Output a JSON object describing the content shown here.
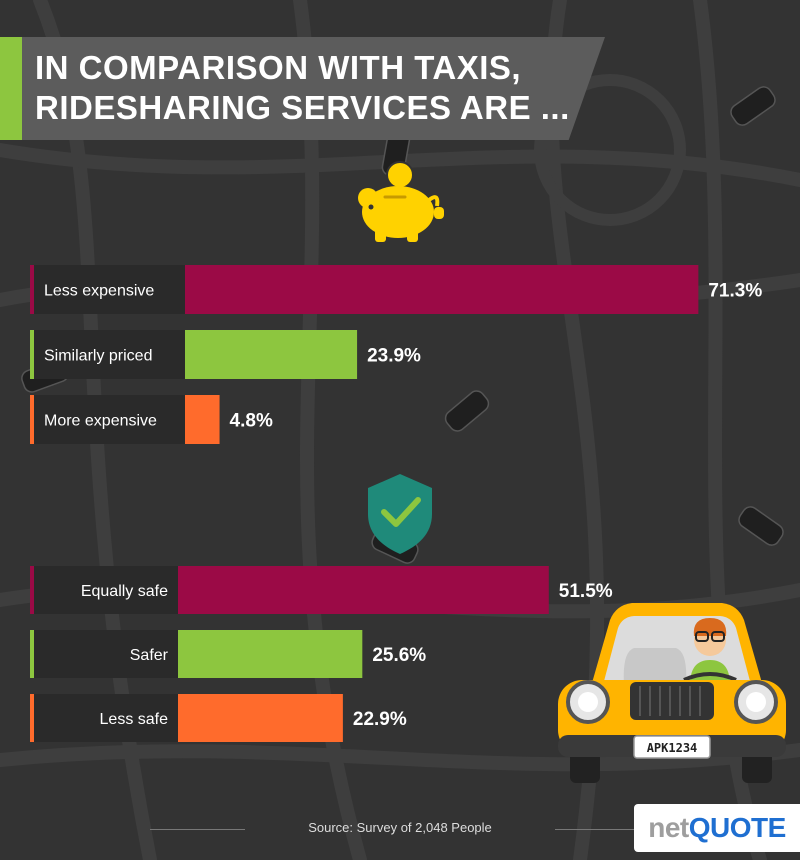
{
  "title": "IN COMPARISON WITH TAXIS, RIDESHARING SERVICES ARE ...",
  "source": "Source: Survey of 2,048 People",
  "logo": {
    "part1": "net",
    "part2": "QUOTE"
  },
  "car_plate": "APK1234",
  "icons": {
    "price_group": "piggy-bank-icon",
    "safety_group": "shield-check-icon",
    "car": "taxi-driver-illustration"
  },
  "colors": {
    "background": "#333333",
    "label_box": "#2a2a2a",
    "first": "#9b0a46",
    "second": "#8dc63f",
    "third": "#ff6b2c",
    "accent": "#8dc63f",
    "icon_gold": "#ffd200",
    "shield": "#1f8a7a"
  },
  "chart_data": [
    {
      "type": "bar",
      "orientation": "horizontal",
      "categories": [
        "Less expensive",
        "Similarly priced",
        "More expensive"
      ],
      "values": [
        71.3,
        23.9,
        4.8
      ],
      "value_labels": [
        "71.3%",
        "23.9%",
        "4.8%"
      ],
      "xlim": [
        0,
        100
      ],
      "grid": false
    },
    {
      "type": "bar",
      "orientation": "horizontal",
      "categories": [
        "Equally safe",
        "Safer",
        "Less safe"
      ],
      "values": [
        51.5,
        25.6,
        22.9
      ],
      "value_labels": [
        "51.5%",
        "25.6%",
        "22.9%"
      ],
      "xlim": [
        0,
        100
      ],
      "grid": false
    }
  ]
}
